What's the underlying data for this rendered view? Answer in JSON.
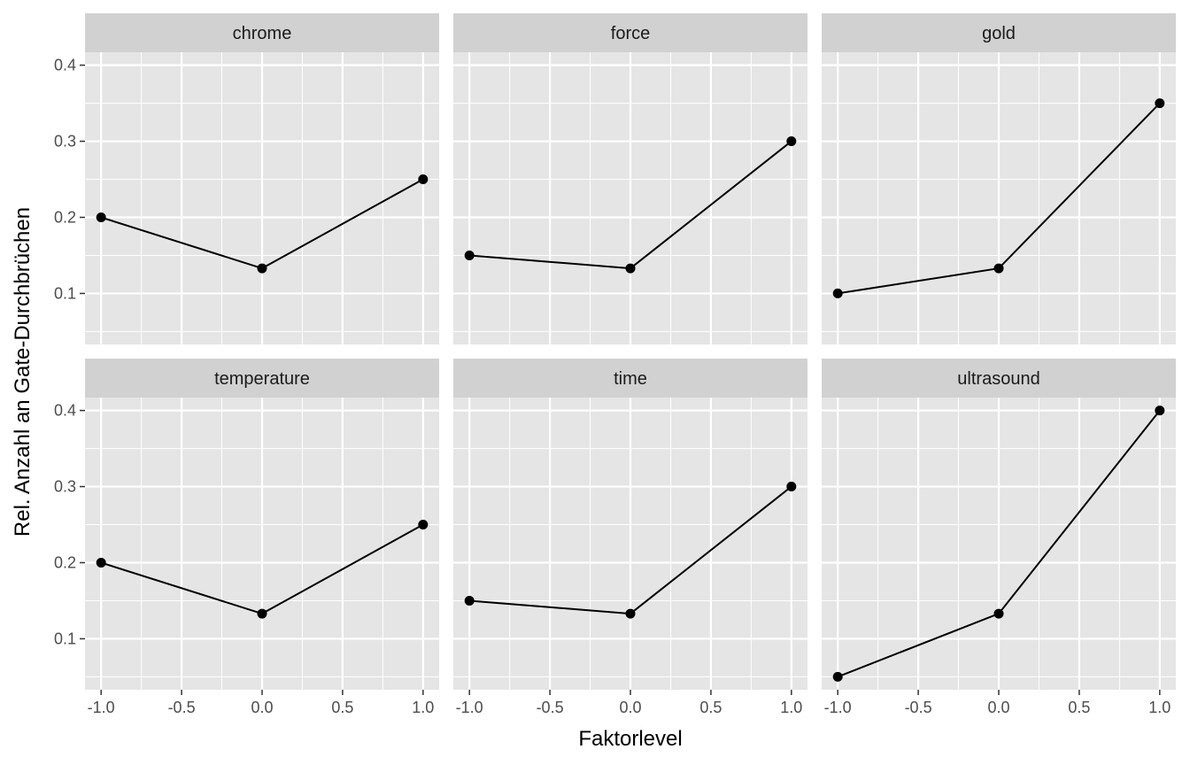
{
  "chart_data": {
    "type": "line",
    "facet": "wrap",
    "xlabel": "Faktorlevel",
    "ylabel": "Rel. Anzahl an Gate-Durchbrüchen",
    "x": [
      -1.0,
      0.0,
      1.0
    ],
    "xlim": [
      -1.1,
      1.1
    ],
    "ylim": [
      0.033,
      0.417
    ],
    "x_ticks": [
      -1.0,
      -0.5,
      0.0,
      0.5,
      1.0
    ],
    "x_tick_labels": [
      "-1.0",
      "-0.5",
      "0.0",
      "0.5",
      "1.0"
    ],
    "y_ticks": [
      0.1,
      0.2,
      0.3,
      0.4
    ],
    "y_tick_labels": [
      "0.1",
      "0.2",
      "0.3",
      "0.4"
    ],
    "grid": true,
    "panels": [
      {
        "name": "chrome",
        "values": [
          0.2,
          0.133,
          0.25
        ]
      },
      {
        "name": "force",
        "values": [
          0.15,
          0.133,
          0.3
        ]
      },
      {
        "name": "gold",
        "values": [
          0.1,
          0.133,
          0.35
        ]
      },
      {
        "name": "temperature",
        "values": [
          0.2,
          0.133,
          0.25
        ]
      },
      {
        "name": "time",
        "values": [
          0.15,
          0.133,
          0.3
        ]
      },
      {
        "name": "ultrasound",
        "values": [
          0.05,
          0.133,
          0.4
        ]
      }
    ],
    "colors": {
      "panel_bg": "#e5e5e5",
      "strip_bg": "#d1d1d1",
      "grid": "#ffffff",
      "line": "#000000",
      "point": "#000000"
    }
  }
}
